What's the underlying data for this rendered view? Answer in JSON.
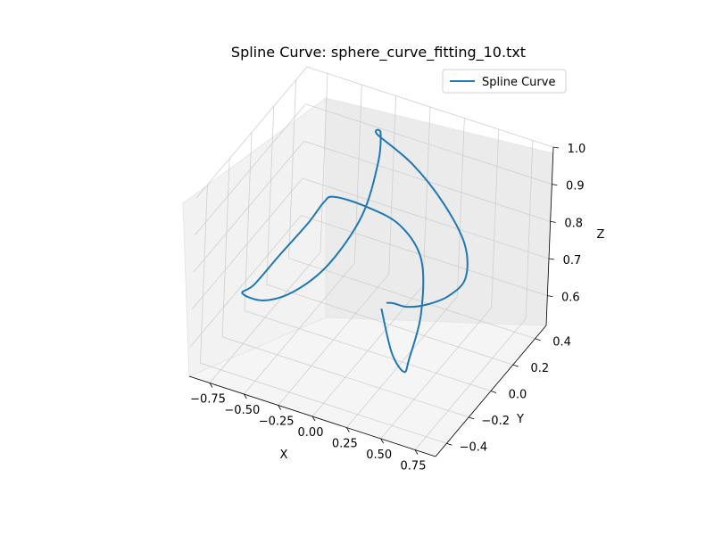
{
  "chart_data": {
    "type": "line",
    "projection": "3d",
    "title": "Spline Curve: sphere_curve_fitting_10.txt",
    "xlabel": "X",
    "ylabel": "Y",
    "zlabel": "Z",
    "xlim": [
      -0.9,
      0.9
    ],
    "ylim": [
      -0.5,
      0.5
    ],
    "zlim": [
      0.52,
      1.0
    ],
    "xticks": [
      "−0.75",
      "−0.50",
      "−0.25",
      "0.00",
      "0.25",
      "0.50",
      "0.75"
    ],
    "xtick_values": [
      -0.75,
      -0.5,
      -0.25,
      0.0,
      0.25,
      0.5,
      0.75
    ],
    "yticks": [
      "−0.4",
      "−0.2",
      "0.0",
      "0.2",
      "0.4"
    ],
    "ytick_values": [
      -0.4,
      -0.2,
      0.0,
      0.2,
      0.4
    ],
    "zticks": [
      "0.6",
      "0.7",
      "0.8",
      "0.9",
      "1.0"
    ],
    "ztick_values": [
      0.6,
      0.7,
      0.8,
      0.9,
      1.0
    ],
    "grid": true,
    "legend_position": "top-right",
    "series": [
      {
        "name": "Spline Curve",
        "color": "#1f77b4",
        "x": [
          0.05,
          0.25,
          0.48,
          0.62,
          0.64,
          0.55,
          0.36,
          0.1,
          -0.15,
          -0.32,
          -0.48,
          -0.66,
          -0.8,
          -0.86,
          -0.7,
          -0.5,
          -0.3,
          -0.14,
          -0.1,
          -0.16,
          -0.22,
          0.0,
          0.2,
          0.35,
          0.38,
          0.3,
          0.18,
          0.08,
          0.02,
          0.05
        ],
        "y": [
          0.05,
          -0.1,
          -0.28,
          -0.42,
          -0.35,
          -0.25,
          -0.22,
          -0.22,
          -0.18,
          -0.05,
          0.02,
          0.0,
          -0.05,
          -0.08,
          -0.08,
          -0.05,
          0.0,
          0.08,
          0.16,
          0.25,
          0.3,
          0.35,
          0.4,
          0.42,
          0.4,
          0.35,
          0.3,
          0.25,
          0.2,
          0.1
        ],
        "z": [
          0.62,
          0.58,
          0.62,
          0.72,
          0.82,
          0.92,
          0.98,
          1.0,
          0.98,
          0.9,
          0.8,
          0.7,
          0.62,
          0.6,
          0.6,
          0.64,
          0.72,
          0.84,
          0.96,
          1.0,
          0.97,
          0.9,
          0.8,
          0.7,
          0.62,
          0.58,
          0.56,
          0.56,
          0.58,
          0.62
        ]
      }
    ]
  }
}
